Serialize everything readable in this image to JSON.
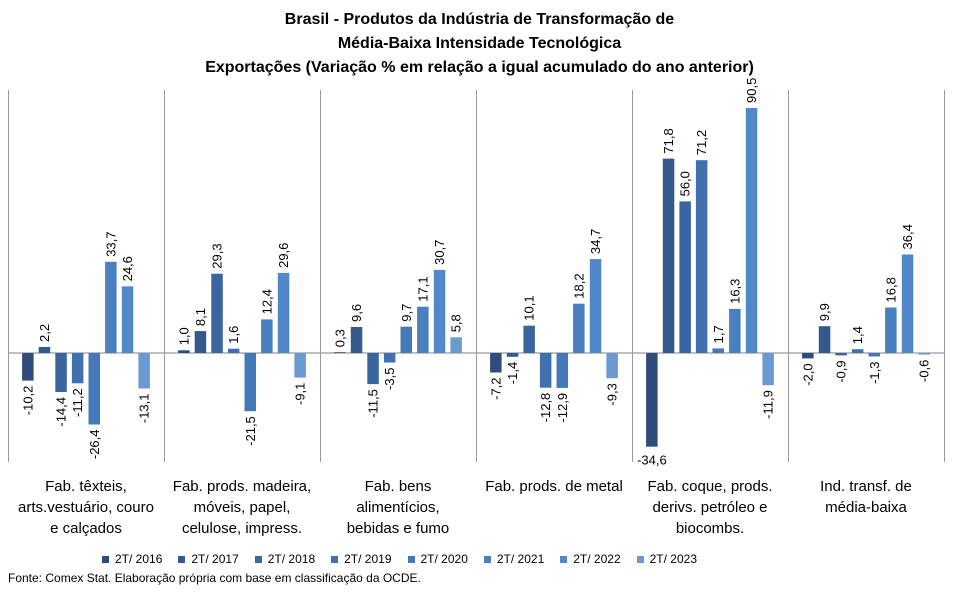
{
  "title_lines": [
    "Brasil - Produtos da Indústria de Transformação de",
    "Média-Baixa Intensidade Tecnológica",
    "Exportações (Variação % em relação a igual acumulado do ano anterior)"
  ],
  "source": "Fonte: Comex Stat. Elaboração própria com base em classificação da OCDE.",
  "chart_data": {
    "type": "bar",
    "categories": [
      [
        "Fab. têxteis,",
        "arts.vestuário, couro",
        "e calçados"
      ],
      [
        "Fab. prods. madeira,",
        "móveis, papel,",
        "celulose, impress."
      ],
      [
        "Fab. bens",
        "alimentícios,",
        "bebidas e fumo"
      ],
      [
        "Fab. prods. de metal"
      ],
      [
        "Fab. coque, prods.",
        "derivs. petróleo e",
        "biocombs."
      ],
      [
        "Ind. transf. de",
        "média-baixa"
      ]
    ],
    "series": [
      {
        "name": "2T/ 2016",
        "color": "#2E4D7B",
        "values": [
          -10.2,
          1.0,
          0.3,
          -7.2,
          -34.6,
          -2.0
        ],
        "labels": [
          "-10,2",
          "1,0",
          "0,3",
          "-7,2",
          "-34,6",
          "-2,0"
        ]
      },
      {
        "name": "2T/ 2017",
        "color": "#345A8D",
        "values": [
          2.2,
          8.1,
          9.6,
          -1.4,
          71.8,
          9.9
        ],
        "labels": [
          "2,2",
          "8,1",
          "9,6",
          "-1,4",
          "71,8",
          "9,9"
        ]
      },
      {
        "name": "2T/ 2018",
        "color": "#3A65A0",
        "values": [
          -14.4,
          29.3,
          -11.5,
          10.1,
          56.0,
          -0.9
        ],
        "labels": [
          "-14,4",
          "29,3",
          "-11,5",
          "10,1",
          "56,0",
          "-0,9"
        ]
      },
      {
        "name": "2T/ 2019",
        "color": "#4070AE",
        "values": [
          -11.2,
          1.6,
          -3.5,
          -12.8,
          71.2,
          1.4
        ],
        "labels": [
          "-11,2",
          "1,6",
          "-3,5",
          "-12,8",
          "71,2",
          "1,4"
        ]
      },
      {
        "name": "2T/ 2020",
        "color": "#4578B8",
        "values": [
          -26.4,
          -21.5,
          9.7,
          -12.9,
          1.7,
          -1.3
        ],
        "labels": [
          "-26,4",
          "-21,5",
          "9,7",
          "-12,9",
          "1,7",
          "-1,3"
        ]
      },
      {
        "name": "2T/ 2021",
        "color": "#4A7FC1",
        "values": [
          33.7,
          12.4,
          17.1,
          18.2,
          16.3,
          16.8
        ],
        "labels": [
          "33,7",
          "12,4",
          "17,1",
          "18,2",
          "16,3",
          "16,8"
        ]
      },
      {
        "name": "2T/ 2022",
        "color": "#5088CA",
        "values": [
          24.6,
          29.6,
          30.7,
          34.7,
          90.5,
          36.4
        ],
        "labels": [
          "24,6",
          "29,6",
          "30,7",
          "34,7",
          "90,5",
          "36,4"
        ]
      },
      {
        "name": "2T/ 2023",
        "color": "#6B9AD3",
        "values": [
          -13.1,
          -9.1,
          5.8,
          -9.3,
          -11.9,
          -0.6
        ],
        "labels": [
          "-13,1",
          "-9,1",
          "5,8",
          "-9,3",
          "-11,9",
          "-0,6"
        ]
      }
    ],
    "grid": false,
    "legend_position": "bottom"
  }
}
